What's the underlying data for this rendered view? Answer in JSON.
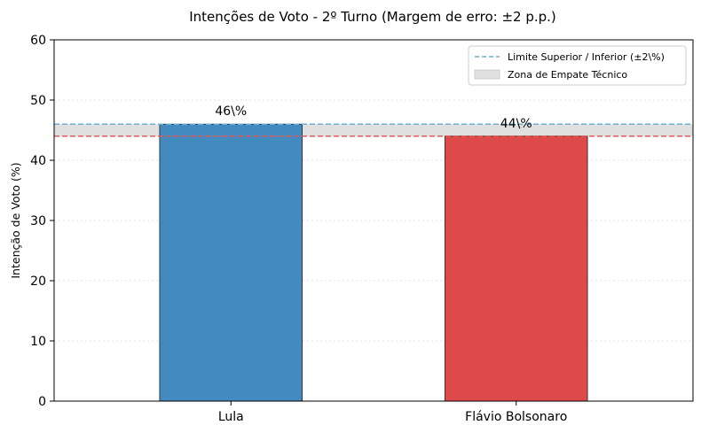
{
  "chart_data": {
    "type": "bar",
    "title": "Intenções de Voto - 2º Turno (Margem de erro: ±2 p.p.)",
    "xlabel": "",
    "ylabel": "Intenção de Voto (%)",
    "ylim": [
      0,
      60
    ],
    "yticks": [
      "0",
      "10",
      "20",
      "30",
      "40",
      "50",
      "60"
    ],
    "categories": [
      "Lula",
      "Flávio Bolsonaro"
    ],
    "values": [
      46,
      44
    ],
    "data_labels": [
      "46\\%",
      "44\\%"
    ],
    "bar_colors": [
      "#428ac0",
      "#de4a4a"
    ],
    "reference_lines": [
      {
        "name": "Limite Superior / Inferior (±2\\%)",
        "y": 46,
        "color": "#6aaed6",
        "style": "dashed"
      },
      {
        "y": 44,
        "color": "#e05a5a",
        "style": "dashed"
      }
    ],
    "band": {
      "name": "Zona de Empate Técnico",
      "y0": 44,
      "y1": 46,
      "color": "#e0e0e0"
    },
    "grid": true,
    "legend_position": "top-right"
  }
}
